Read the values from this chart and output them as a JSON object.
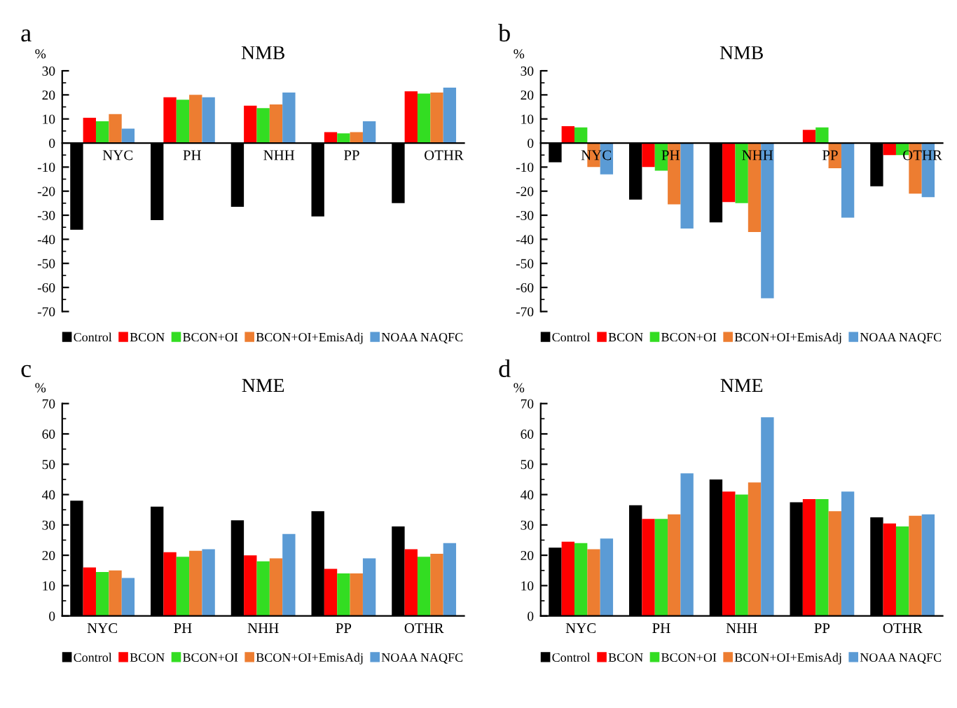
{
  "chart_data": [
    {
      "type": "bar",
      "title": "NMB",
      "ylabel": "%",
      "annotations": [
        "a"
      ],
      "categories": [
        "NYC",
        "PH",
        "NHH",
        "PP",
        "OTHR"
      ],
      "ylim": [
        -70,
        30
      ],
      "yticks": [
        -70,
        -60,
        -50,
        -40,
        -30,
        -20,
        -10,
        0,
        10,
        20,
        30
      ],
      "grid": false,
      "legend": "bottom",
      "series": [
        {
          "name": "Control",
          "color": "#000000",
          "values": [
            -36,
            -32,
            -26.5,
            -30.5,
            -25
          ]
        },
        {
          "name": "BCON",
          "color": "#ff0000",
          "values": [
            10.5,
            19,
            15.5,
            4.5,
            21.5
          ]
        },
        {
          "name": "BCON+OI",
          "color": "#33dd22",
          "values": [
            9,
            18,
            14.5,
            4,
            20.5
          ]
        },
        {
          "name": "BCON+OI+EmisAdj",
          "color": "#ed7d31",
          "values": [
            12,
            20,
            16,
            4.5,
            21
          ]
        },
        {
          "name": "NOAA NAQFC",
          "color": "#5b9bd5",
          "values": [
            6,
            19,
            21,
            9,
            23
          ]
        }
      ]
    },
    {
      "type": "bar",
      "title": "NMB",
      "ylabel": "%",
      "annotations": [
        "b"
      ],
      "categories": [
        "NYC",
        "PH",
        "NHH",
        "PP",
        "OTHR"
      ],
      "ylim": [
        -70,
        30
      ],
      "yticks": [
        -70,
        -60,
        -50,
        -40,
        -30,
        -20,
        -10,
        0,
        10,
        20,
        30
      ],
      "grid": false,
      "legend": "bottom",
      "series": [
        {
          "name": "Control",
          "color": "#000000",
          "values": [
            -8,
            -23.5,
            -33,
            0,
            -18
          ]
        },
        {
          "name": "BCON",
          "color": "#ff0000",
          "values": [
            7,
            -10,
            -24.5,
            5.5,
            -5
          ]
        },
        {
          "name": "BCON+OI",
          "color": "#33dd22",
          "values": [
            6.5,
            -11.5,
            -25,
            6.5,
            -5
          ]
        },
        {
          "name": "BCON+OI+EmisAdj",
          "color": "#ed7d31",
          "values": [
            -10,
            -25.5,
            -37,
            -10.5,
            -21
          ]
        },
        {
          "name": "NOAA NAQFC",
          "color": "#5b9bd5",
          "values": [
            -13,
            -35.5,
            -64.5,
            -31,
            -22.5
          ]
        }
      ]
    },
    {
      "type": "bar",
      "title": "NME",
      "ylabel": "%",
      "annotations": [
        "c"
      ],
      "categories": [
        "NYC",
        "PH",
        "NHH",
        "PP",
        "OTHR"
      ],
      "ylim": [
        0,
        70
      ],
      "yticks": [
        0,
        10,
        20,
        30,
        40,
        50,
        60,
        70
      ],
      "grid": false,
      "legend": "bottom",
      "series": [
        {
          "name": "Control",
          "color": "#000000",
          "values": [
            38,
            36,
            31.5,
            34.5,
            29.5
          ]
        },
        {
          "name": "BCON",
          "color": "#ff0000",
          "values": [
            16,
            21,
            20,
            15.5,
            22
          ]
        },
        {
          "name": "BCON+OI",
          "color": "#33dd22",
          "values": [
            14.5,
            19.5,
            18,
            14,
            19.5
          ]
        },
        {
          "name": "BCON+OI+EmisAdj",
          "color": "#ed7d31",
          "values": [
            15,
            21.5,
            19,
            14,
            20.5
          ]
        },
        {
          "name": "NOAA NAQFC",
          "color": "#5b9bd5",
          "values": [
            12.5,
            22,
            27,
            19,
            24
          ]
        }
      ]
    },
    {
      "type": "bar",
      "title": "NME",
      "ylabel": "%",
      "annotations": [
        "d"
      ],
      "categories": [
        "NYC",
        "PH",
        "NHH",
        "PP",
        "OTHR"
      ],
      "ylim": [
        0,
        70
      ],
      "yticks": [
        0,
        10,
        20,
        30,
        40,
        50,
        60,
        70
      ],
      "grid": false,
      "legend": "bottom",
      "series": [
        {
          "name": "Control",
          "color": "#000000",
          "values": [
            22.5,
            36.5,
            45,
            37.5,
            32.5
          ]
        },
        {
          "name": "BCON",
          "color": "#ff0000",
          "values": [
            24.5,
            32,
            41,
            38.5,
            30.5
          ]
        },
        {
          "name": "BCON+OI",
          "color": "#33dd22",
          "values": [
            24,
            32,
            40,
            38.5,
            29.5
          ]
        },
        {
          "name": "BCON+OI+EmisAdj",
          "color": "#ed7d31",
          "values": [
            22,
            33.5,
            44,
            34.5,
            33
          ]
        },
        {
          "name": "NOAA NAQFC",
          "color": "#5b9bd5",
          "values": [
            25.5,
            47,
            65.5,
            41,
            33.5
          ]
        }
      ]
    }
  ]
}
